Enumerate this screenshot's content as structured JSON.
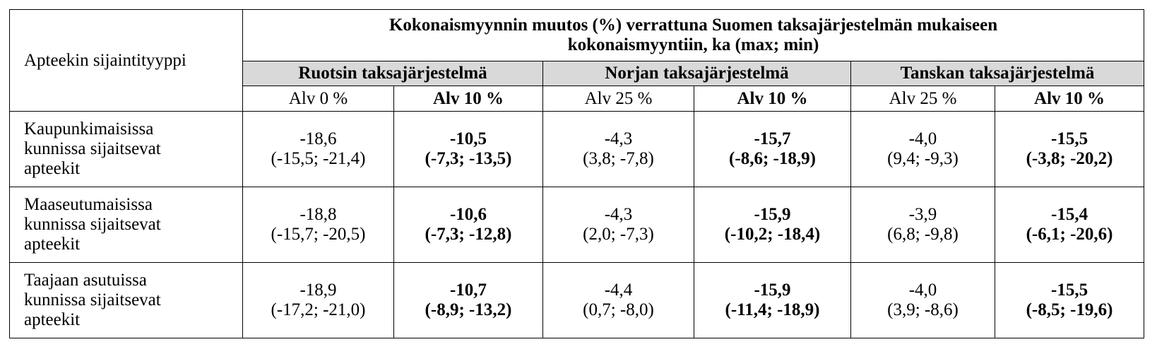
{
  "header": {
    "corner": "Apteekin sijaintityyppi",
    "title_lines": [
      "Kokonaismyynnin muutos (%) verrattuna Suomen taksajärjestelmän mukaiseen",
      "kokonaismyyntiin, ka (max; min)"
    ],
    "groups": [
      "Ruotsin taksajärjestelmä",
      "Norjan taksajärjestelmä",
      "Tanskan taksajärjestelmä"
    ],
    "subheaders": [
      "Alv 0 %",
      "Alv 10 %",
      "Alv 25 %",
      "Alv 10 %",
      "Alv 25 %",
      "Alv 10 %"
    ]
  },
  "table": {
    "rows": [
      {
        "label_lines": [
          "Kaupunkimaisissa",
          "kunnissa sijaitsevat",
          "apteekit"
        ],
        "cells": [
          [
            "-18,6",
            "(-15,5; -21,4)"
          ],
          [
            "-10,5",
            "(-7,3; -13,5)"
          ],
          [
            "-4,3",
            "(3,8; -7,8)"
          ],
          [
            "-15,7",
            "(-8,6; -18,9)"
          ],
          [
            "-4,0",
            "(9,4; -9,3)"
          ],
          [
            "-15,5",
            "(-3,8; -20,2)"
          ]
        ]
      },
      {
        "label_lines": [
          "Maaseutumaisissa",
          "kunnissa sijaitsevat",
          "apteekit"
        ],
        "cells": [
          [
            "-18,8",
            "(-15,7; -20,5)"
          ],
          [
            "-10,6",
            "(-7,3; -12,8)"
          ],
          [
            "-4,3",
            "(2,0; -7,3)"
          ],
          [
            "-15,9",
            "(-10,2; -18,4)"
          ],
          [
            "-3,9",
            "(6,8; -9,8)"
          ],
          [
            "-15,4",
            "(-6,1; -20,6)"
          ]
        ]
      },
      {
        "label_lines": [
          "Taajaan asutuissa",
          "kunnissa sijaitsevat",
          "apteekit"
        ],
        "cells": [
          [
            "-18,9",
            "(-17,2; -21,0)"
          ],
          [
            "-10,7",
            "(-8,9; -13,2)"
          ],
          [
            "-4,4",
            "(0,7; -8,0)"
          ],
          [
            "-15,9",
            "(-11,4; -18,9)"
          ],
          [
            "-4,0",
            "(3,9; -8,6)"
          ],
          [
            "-15,5",
            "(-8,5; -19,6)"
          ]
        ]
      }
    ]
  }
}
